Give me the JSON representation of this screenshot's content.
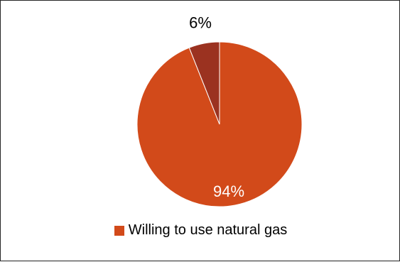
{
  "chart_data": {
    "type": "pie",
    "title": "",
    "slices": [
      {
        "label": "Willing to use natural gas",
        "value": 94,
        "data_label": "94%",
        "color": "#D24A1A",
        "label_color": "#FFFFFF"
      },
      {
        "label": "",
        "value": 6,
        "data_label": "6%",
        "color": "#9B3220",
        "label_color": "#000000"
      }
    ],
    "legend": {
      "position": "bottom",
      "entries": [
        {
          "label": "Willing to use natural gas",
          "color": "#D24A1A"
        }
      ]
    }
  }
}
